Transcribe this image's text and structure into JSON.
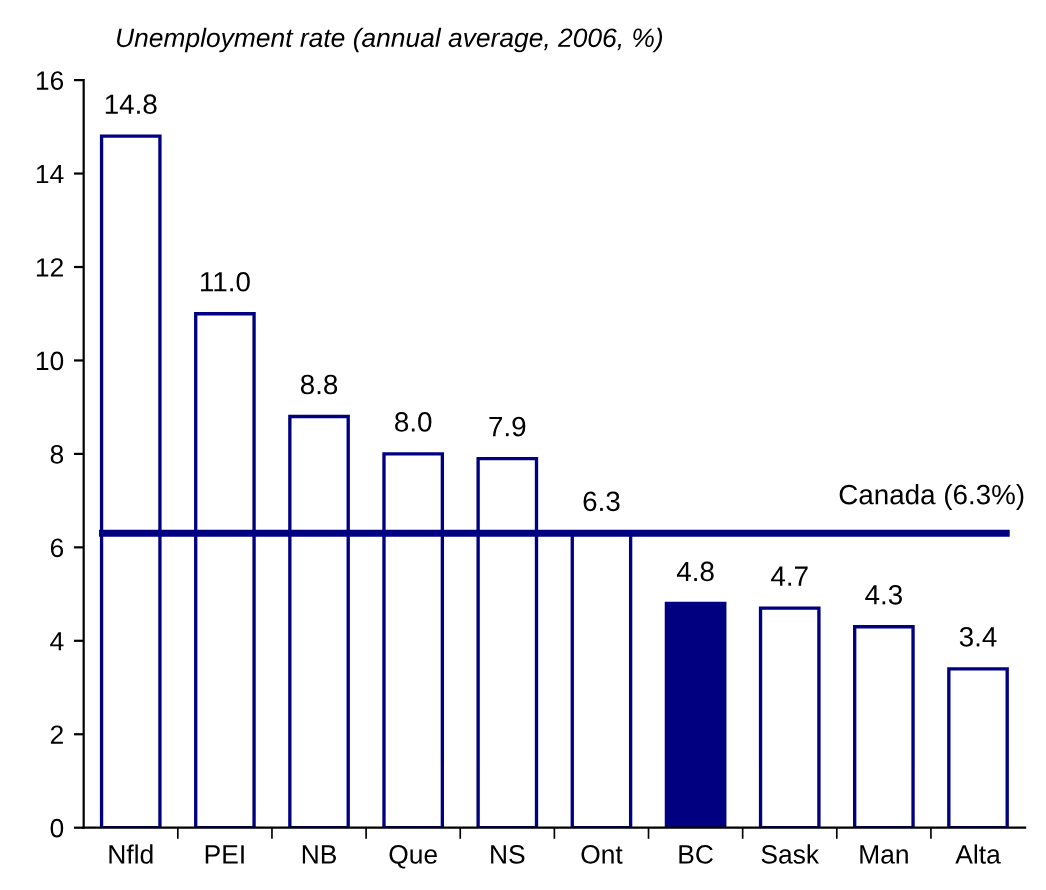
{
  "chart_data": {
    "type": "bar",
    "title": "Unemployment rate (annual average, 2006, %)",
    "categories": [
      "Nfld",
      "PEI",
      "NB",
      "Que",
      "NS",
      "Ont",
      "BC",
      "Sask",
      "Man",
      "Alta"
    ],
    "values": [
      14.8,
      11.0,
      8.8,
      8.0,
      7.9,
      6.3,
      4.8,
      4.7,
      4.3,
      3.4
    ],
    "colors": [
      "#ffffff",
      "#ffffff",
      "#ffffff",
      "#ffffff",
      "#ffffff",
      "#ffffff",
      "#000080",
      "#ffffff",
      "#ffffff",
      "#ffffff"
    ],
    "value_labels": [
      "14.8",
      "11.0",
      "8.8",
      "8.0",
      "7.9",
      "6.3",
      "4.8",
      "4.7",
      "4.3",
      "3.4"
    ],
    "ylim": [
      0,
      16
    ],
    "yticks": [
      0,
      2,
      4,
      6,
      8,
      10,
      12,
      14,
      16
    ],
    "ref_lines": [
      {
        "axis": "y",
        "value": 6.3,
        "label": "Canada (6.3%)",
        "color": "#000080"
      }
    ],
    "grid": false,
    "legend": false
  }
}
